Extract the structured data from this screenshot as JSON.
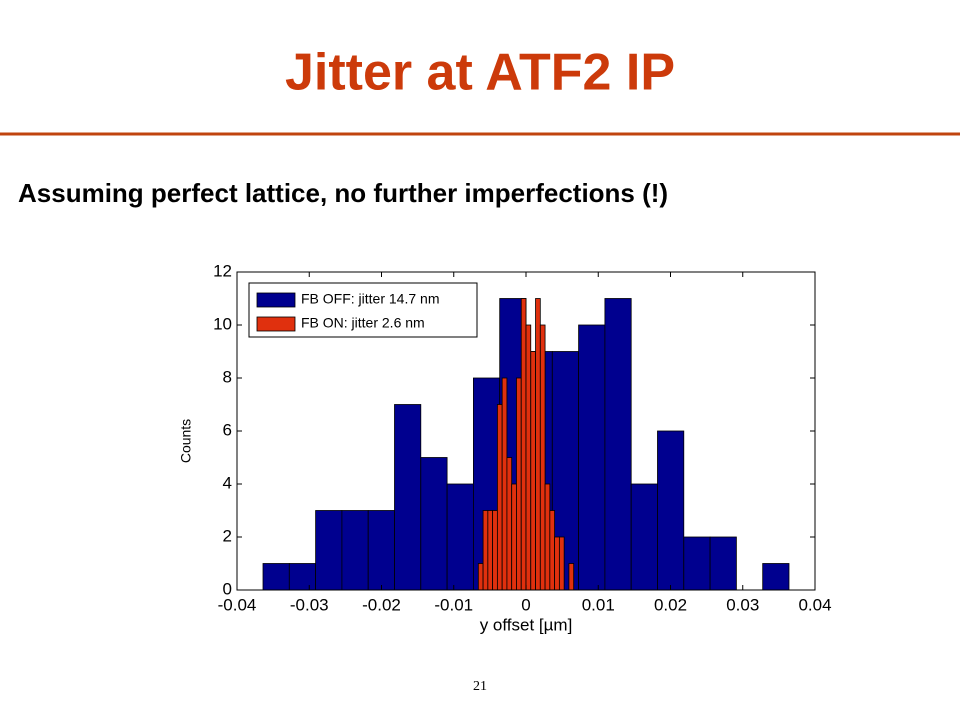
{
  "slide": {
    "title": "Jitter at ATF2 IP",
    "subtitle": "Assuming perfect lattice, no further imperfections (!)",
    "page_number": "21"
  },
  "chart_data": {
    "type": "histogram",
    "xlabel": "y offset [µm]",
    "ylabel": "Counts",
    "xlim": [
      -0.04,
      0.04
    ],
    "xticks": [
      -0.04,
      -0.03,
      -0.02,
      -0.01,
      0,
      0.01,
      0.02,
      0.03,
      0.04
    ],
    "ylim": [
      0,
      12
    ],
    "yticks": [
      0,
      2,
      4,
      6,
      8,
      10,
      12
    ],
    "legend": "upper-left",
    "series": [
      {
        "name": "FB OFF: jitter 14.7 nm",
        "color": "#00008f",
        "bins": [
          -0.0364,
          -0.03276,
          -0.02912,
          -0.02548,
          -0.02184,
          -0.0182,
          -0.01456,
          -0.01092,
          -0.00728,
          -0.00364,
          0,
          0.00364,
          0.00728,
          0.01092,
          0.01456,
          0.0182,
          0.02184,
          0.02548,
          0.02912,
          0.03276,
          0.0364
        ],
        "values": [
          1,
          1,
          3,
          3,
          3,
          7,
          5,
          4,
          8,
          11,
          9,
          9,
          10,
          11,
          4,
          6,
          2,
          2,
          0,
          1
        ]
      },
      {
        "name": "FB ON: jitter 2.6 nm",
        "color": "#e0300e",
        "bins": [
          -0.0066,
          -0.00594,
          -0.00528,
          -0.00462,
          -0.00396,
          -0.0033,
          -0.00264,
          -0.00198,
          -0.00132,
          -0.00066,
          0,
          0.00066,
          0.00132,
          0.00198,
          0.00264,
          0.0033,
          0.00396,
          0.00462,
          0.00528,
          0.00594,
          0.0066
        ],
        "values": [
          1,
          3,
          3,
          3,
          7,
          8,
          5,
          4,
          8,
          11,
          10,
          9,
          11,
          10,
          4,
          3,
          2,
          2,
          0,
          1
        ]
      }
    ]
  }
}
